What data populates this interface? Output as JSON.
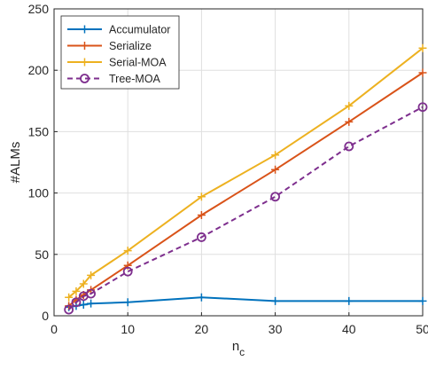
{
  "chart_data": {
    "type": "line",
    "title": "",
    "xlabel": "n",
    "xlabel_subscript": "c",
    "ylabel": "#ALMs",
    "xlim": [
      0,
      50
    ],
    "ylim": [
      0,
      250
    ],
    "xticks": [
      0,
      10,
      20,
      30,
      40,
      50
    ],
    "yticks": [
      0,
      50,
      100,
      150,
      200,
      250
    ],
    "grid": true,
    "legend_position": "top-left",
    "series": [
      {
        "name": "Accumulator",
        "color": "#0072BD",
        "line_style": "solid",
        "marker": "plus",
        "x": [
          2,
          3,
          4,
          5,
          10,
          20,
          30,
          40,
          50
        ],
        "y": [
          7,
          8,
          9,
          10,
          11,
          15,
          12,
          12,
          12
        ]
      },
      {
        "name": "Serialize",
        "color": "#D95319",
        "line_style": "solid",
        "marker": "plus",
        "x": [
          2,
          3,
          4,
          5,
          10,
          20,
          30,
          40,
          50
        ],
        "y": [
          8,
          13,
          17,
          21,
          41,
          82,
          119,
          158,
          198
        ]
      },
      {
        "name": "Serial-MOA",
        "color": "#EDB120",
        "line_style": "solid",
        "marker": "plus",
        "x": [
          2,
          3,
          4,
          5,
          10,
          20,
          30,
          40,
          50
        ],
        "y": [
          15,
          20,
          26,
          33,
          53,
          97,
          131,
          171,
          218
        ]
      },
      {
        "name": "Tree-MOA",
        "color": "#7E2F8E",
        "line_style": "dashed",
        "marker": "circle",
        "x": [
          2,
          3,
          4,
          5,
          10,
          20,
          30,
          40,
          50
        ],
        "y": [
          5,
          11,
          16,
          18,
          36,
          64,
          97,
          138,
          170
        ]
      }
    ]
  }
}
